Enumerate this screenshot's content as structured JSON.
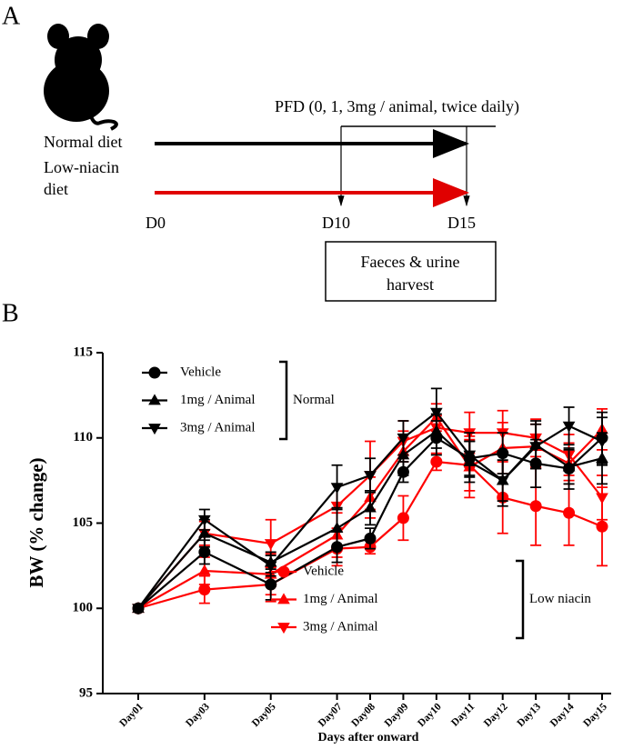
{
  "panel_a": {
    "label": "A",
    "treatment": "PFD (0, 1, 3mg / animal, twice daily)",
    "diets": [
      {
        "lines": [
          "Normal diet"
        ]
      },
      {
        "lines": [
          "Low-niacin",
          "diet"
        ]
      }
    ],
    "days": [
      "D0",
      "D10",
      "D15"
    ],
    "harvest": [
      "Faeces & urine",
      "harvest"
    ]
  },
  "chart_data": {
    "type": "line",
    "panel_label": "B",
    "y_label": "BW (% change)",
    "x_label": "Days after onward",
    "categories": [
      "Day01",
      "Day03",
      "Day05",
      "Day07",
      "Day08",
      "Day09",
      "Day10",
      "Day11",
      "Day12",
      "Day13",
      "Day14",
      "Day15"
    ],
    "ylim": [
      95,
      115
    ],
    "yticks": [
      95,
      100,
      105,
      110,
      115
    ],
    "series": [
      {
        "name": "Vehicle",
        "group": "Normal",
        "color": "#000000",
        "marker": "circle",
        "values": [
          100,
          103.3,
          101.4,
          103.6,
          104.1,
          108.0,
          110.0,
          108.8,
          109.1,
          108.5,
          108.2,
          110.0
        ],
        "errors": [
          0.2,
          0.7,
          0.9,
          0.9,
          0.6,
          0.6,
          1.0,
          1.0,
          1.2,
          1.4,
          1.2,
          1.5
        ]
      },
      {
        "name": "1mg / Animal",
        "group": "Normal",
        "color": "#000000",
        "marker": "triangle-up",
        "values": [
          100,
          104.4,
          102.7,
          104.7,
          105.9,
          109.0,
          110.4,
          108.6,
          107.5,
          109.6,
          108.3,
          108.8
        ],
        "errors": [
          0.2,
          0.8,
          0.6,
          1.2,
          1.0,
          1.2,
          1.0,
          1.2,
          1.5,
          1.4,
          1.0,
          1.5
        ]
      },
      {
        "name": "3mg / Animal",
        "group": "Normal",
        "color": "#000000",
        "marker": "triangle-down",
        "values": [
          100,
          105.2,
          102.5,
          107.1,
          107.8,
          110.0,
          111.5,
          109.0,
          107.5,
          109.5,
          110.7,
          109.8
        ],
        "errors": [
          0.2,
          0.6,
          0.6,
          1.3,
          1.0,
          1.0,
          1.4,
          1.3,
          1.2,
          1.3,
          1.1,
          1.4
        ]
      },
      {
        "name": "Vehicle",
        "group": "Low niacin",
        "color": "#ff0000",
        "marker": "circle",
        "values": [
          100,
          101.1,
          101.4,
          103.5,
          103.6,
          105.3,
          108.6,
          108.4,
          106.5,
          106.0,
          105.6,
          104.8
        ],
        "errors": [
          0.2,
          0.8,
          1.0,
          1.0,
          0.4,
          1.3,
          0.5,
          1.5,
          2.1,
          2.3,
          1.9,
          2.3
        ]
      },
      {
        "name": "1mg / Animal",
        "group": "Low niacin",
        "color": "#ff0000",
        "marker": "triangle-up",
        "values": [
          100,
          102.2,
          102.0,
          104.3,
          106.5,
          109.2,
          111.2,
          108.3,
          109.4,
          109.5,
          108.5,
          110.5
        ],
        "errors": [
          0.2,
          0.8,
          1.2,
          1.3,
          1.2,
          1.2,
          0.8,
          1.8,
          1.5,
          1.3,
          1.2,
          1.2
        ]
      },
      {
        "name": "3mg / Animal",
        "group": "Low niacin",
        "color": "#ff0000",
        "marker": "triangle-down",
        "values": [
          100,
          104.4,
          103.8,
          106.0,
          107.8,
          109.8,
          110.6,
          110.3,
          110.3,
          110.0,
          109.0,
          106.5
        ],
        "errors": [
          0.2,
          0.7,
          1.4,
          1.3,
          2.0,
          1.2,
          0.7,
          1.2,
          1.3,
          1.1,
          1.2,
          1.3
        ]
      }
    ]
  }
}
